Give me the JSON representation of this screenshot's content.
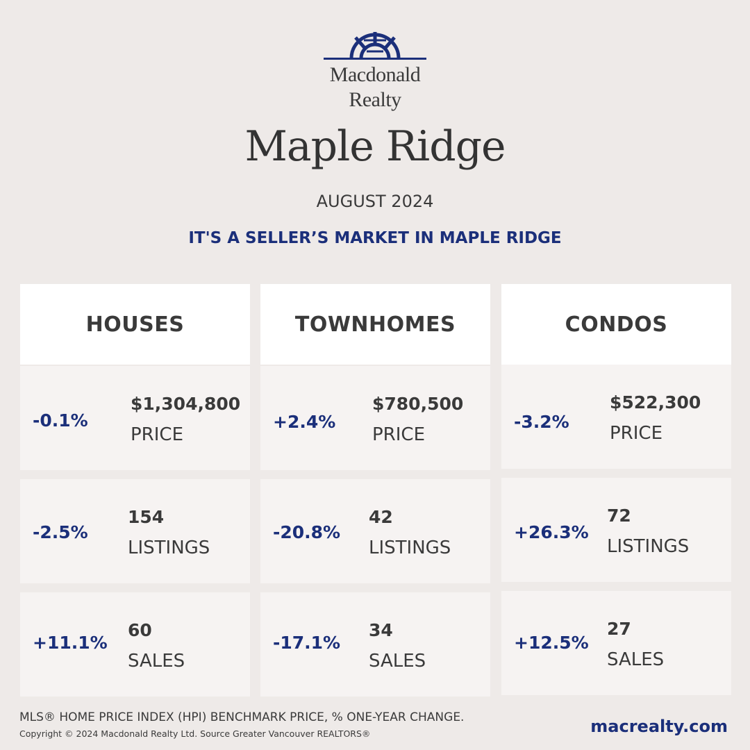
{
  "brand": {
    "line1": "Macdonald",
    "line2": "Realty",
    "accent_color": "#1b2f7a",
    "logo_icon": "sunburst-logo-icon"
  },
  "title": "Maple Ridge",
  "date": "AUGUST 2024",
  "tagline": "IT'S A SELLER’S MARKET IN MAPLE RIDGE",
  "columns": [
    {
      "heading": "HOUSES",
      "price": {
        "change": "-0.1%",
        "value": "$1,304,800",
        "label": "PRICE"
      },
      "listings": {
        "change": "-2.5%",
        "value": "154",
        "label": "LISTINGS"
      },
      "sales": {
        "change": "+11.1%",
        "value": "60",
        "label": "SALES"
      }
    },
    {
      "heading": "TOWNHOMES",
      "price": {
        "change": "+2.4%",
        "value": "$780,500",
        "label": "PRICE"
      },
      "listings": {
        "change": "-20.8%",
        "value": "42",
        "label": "LISTINGS"
      },
      "sales": {
        "change": "-17.1%",
        "value": "34",
        "label": "SALES"
      }
    },
    {
      "heading": "CONDOS",
      "price": {
        "change": "-3.2%",
        "value": "$522,300",
        "label": "PRICE"
      },
      "listings": {
        "change": "+26.3%",
        "value": "72",
        "label": "LISTINGS"
      },
      "sales": {
        "change": "+12.5%",
        "value": "27",
        "label": "SALES"
      }
    }
  ],
  "footer": {
    "note": "MLS® HOME PRICE INDEX (HPI) BENCHMARK PRICE, % ONE-YEAR CHANGE.",
    "copyright": "Copyright © 2024 Macdonald Realty Ltd. Source Greater Vancouver REALTORS®",
    "website": "macrealty.com"
  }
}
